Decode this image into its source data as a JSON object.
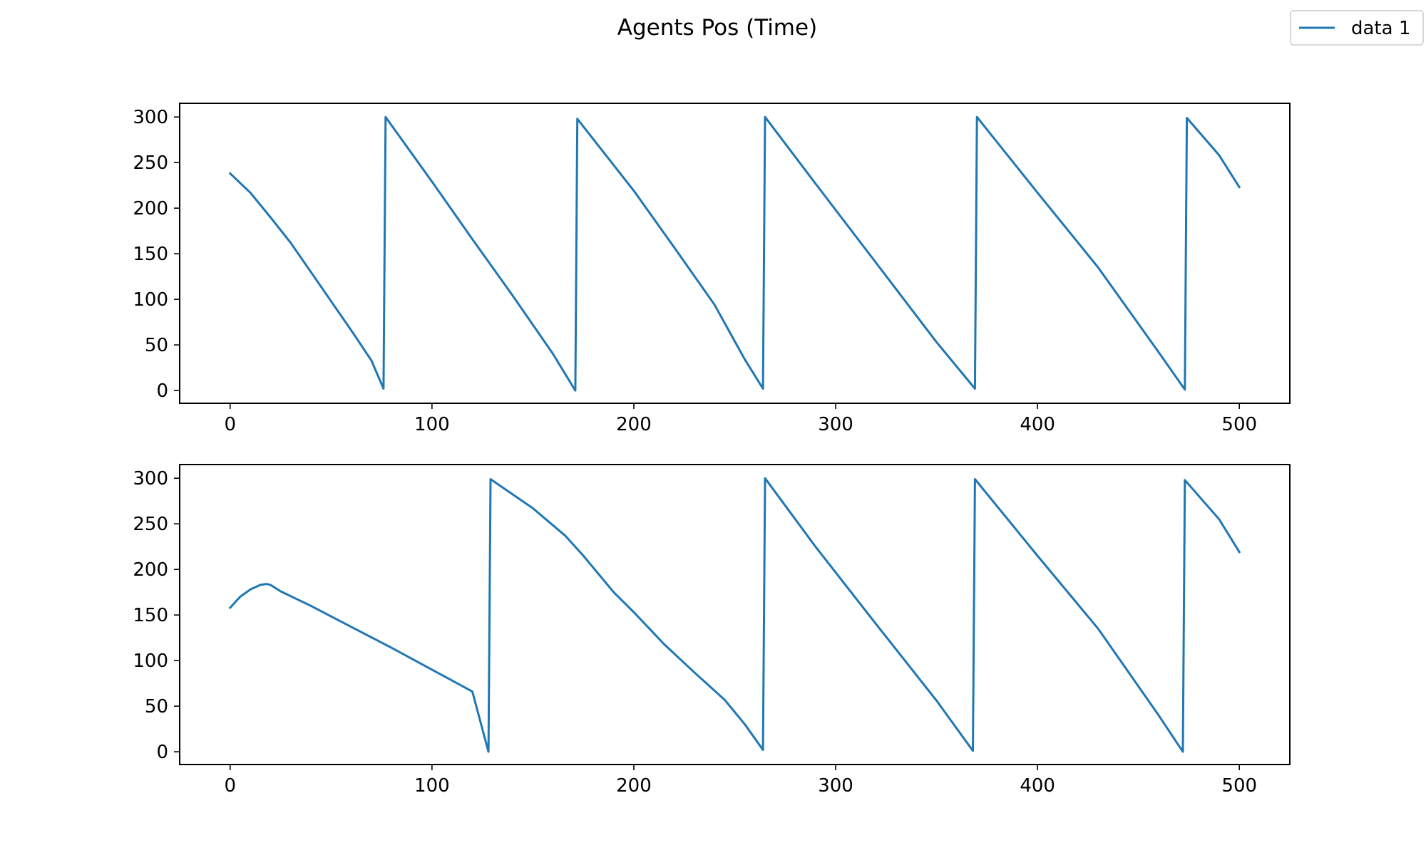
{
  "figure": {
    "title": "Agents Pos (Time)"
  },
  "legend": {
    "label": "data 1",
    "placement": "top-right"
  },
  "colors": {
    "series": "#1f77b4",
    "axes": "#000000",
    "background": "#ffffff"
  },
  "chart_data": [
    {
      "type": "line",
      "title": "",
      "xlabel": "",
      "ylabel": "",
      "xlim": [
        -25,
        525
      ],
      "ylim": [
        -14,
        315
      ],
      "xticks": [
        0,
        100,
        200,
        300,
        400,
        500
      ],
      "yticks": [
        0,
        50,
        100,
        150,
        200,
        250,
        300
      ],
      "grid": false,
      "series": [
        {
          "name": "data 1",
          "points": [
            [
              0,
              238
            ],
            [
              10,
              217
            ],
            [
              20,
              190
            ],
            [
              30,
              162
            ],
            [
              40,
              130
            ],
            [
              50,
              98
            ],
            [
              60,
              66
            ],
            [
              70,
              33
            ],
            [
              76,
              2
            ],
            [
              77,
              300
            ],
            [
              100,
              229
            ],
            [
              120,
              166
            ],
            [
              140,
              104
            ],
            [
              160,
              40
            ],
            [
              171,
              0
            ],
            [
              172,
              298
            ],
            [
              200,
              219
            ],
            [
              220,
              157
            ],
            [
              240,
              94
            ],
            [
              255,
              34
            ],
            [
              264,
              2
            ],
            [
              265,
              300
            ],
            [
              290,
              227
            ],
            [
              320,
              140
            ],
            [
              350,
              53
            ],
            [
              369,
              2
            ],
            [
              370,
              300
            ],
            [
              400,
              217
            ],
            [
              430,
              135
            ],
            [
              460,
              42
            ],
            [
              473,
              1
            ],
            [
              474,
              299
            ],
            [
              490,
              258
            ],
            [
              500,
              223
            ]
          ]
        }
      ]
    },
    {
      "type": "line",
      "title": "",
      "xlabel": "",
      "ylabel": "",
      "xlim": [
        -25,
        525
      ],
      "ylim": [
        -14,
        315
      ],
      "xticks": [
        0,
        100,
        200,
        300,
        400,
        500
      ],
      "yticks": [
        0,
        50,
        100,
        150,
        200,
        250,
        300
      ],
      "grid": false,
      "series": [
        {
          "name": "data 1",
          "points": [
            [
              0,
              158
            ],
            [
              5,
              170
            ],
            [
              10,
              178
            ],
            [
              15,
              183
            ],
            [
              18,
              184
            ],
            [
              20,
              183
            ],
            [
              25,
              176
            ],
            [
              40,
              160
            ],
            [
              60,
              137
            ],
            [
              80,
              114
            ],
            [
              100,
              90
            ],
            [
              120,
              66
            ],
            [
              128,
              0
            ],
            [
              129,
              299
            ],
            [
              150,
              267
            ],
            [
              166,
              237
            ],
            [
              175,
              215
            ],
            [
              190,
              175
            ],
            [
              200,
              153
            ],
            [
              215,
              118
            ],
            [
              230,
              87
            ],
            [
              245,
              57
            ],
            [
              255,
              30
            ],
            [
              264,
              2
            ],
            [
              265,
              300
            ],
            [
              290,
              225
            ],
            [
              320,
              140
            ],
            [
              350,
              56
            ],
            [
              368,
              1
            ],
            [
              369,
              299
            ],
            [
              400,
              215
            ],
            [
              430,
              135
            ],
            [
              460,
              40
            ],
            [
              472,
              0
            ],
            [
              473,
              298
            ],
            [
              490,
              255
            ],
            [
              500,
              219
            ]
          ]
        }
      ]
    }
  ]
}
